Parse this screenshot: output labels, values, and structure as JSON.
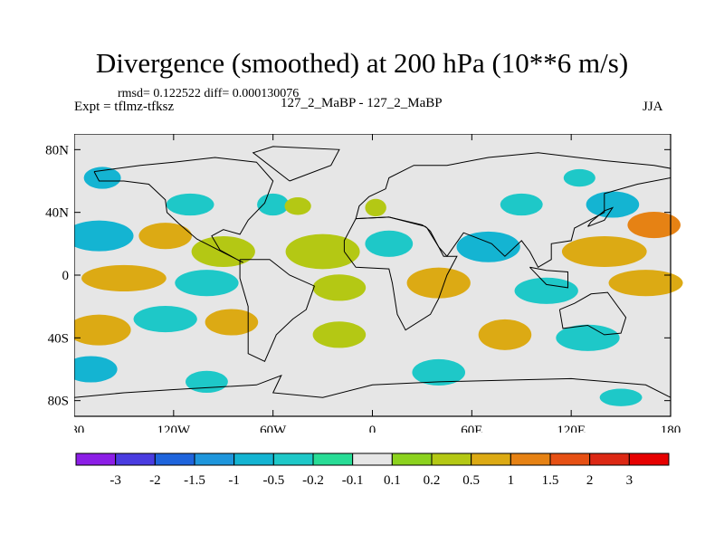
{
  "header": {
    "title": "Divergence (smoothed) at 200 hPa (10**6 m/s)",
    "stats": "rmsd= 0.122522 diff= 0.000130076",
    "expt": "Expt = tflmz-tfksz",
    "subtitle": "127_2_MaBP - 127_2_MaBP",
    "season": "JJA"
  },
  "chart_data": {
    "type": "heatmap",
    "title": "Divergence (smoothed) at 200 hPa (10**6 m/s)",
    "xlabel": "",
    "ylabel": "",
    "xlim": [
      -180,
      180
    ],
    "ylim": [
      -90,
      90
    ],
    "x_ticks": [
      {
        "value": -180,
        "label": "180"
      },
      {
        "value": -120,
        "label": "120W"
      },
      {
        "value": -60,
        "label": "60W"
      },
      {
        "value": 0,
        "label": "0"
      },
      {
        "value": 60,
        "label": "60E"
      },
      {
        "value": 120,
        "label": "120E"
      },
      {
        "value": 180,
        "label": "180"
      }
    ],
    "y_ticks": [
      {
        "value": 80,
        "label": "80N"
      },
      {
        "value": 40,
        "label": "40N"
      },
      {
        "value": 0,
        "label": "0"
      },
      {
        "value": -40,
        "label": "40S"
      },
      {
        "value": -80,
        "label": "80S"
      }
    ],
    "colorbar": {
      "levels": [
        "-3",
        "-2",
        "-1.5",
        "-1",
        "-0.5",
        "-0.2",
        "-0.1",
        "0.1",
        "0.2",
        "0.5",
        "1",
        "1.5",
        "2",
        "3"
      ],
      "colors": [
        "#8c1ee6",
        "#4a3ce0",
        "#1e64dc",
        "#1e96dc",
        "#14b4d2",
        "#1ec8c8",
        "#28dc96",
        "#e6e6e6",
        "#8cd21e",
        "#b4c814",
        "#dcaa14",
        "#e68214",
        "#e65014",
        "#dc2814",
        "#e60000"
      ]
    },
    "field_regions": [
      {
        "lon": -163,
        "lat": 62,
        "rlon": 7,
        "rlat": 5,
        "level": "-0.5"
      },
      {
        "lon": -110,
        "lat": 45,
        "rlon": 9,
        "rlat": 5,
        "level": "-0.2"
      },
      {
        "lon": -60,
        "lat": 45,
        "rlon": 6,
        "rlat": 5,
        "level": "-0.2"
      },
      {
        "lon": -45,
        "lat": 44,
        "rlon": 5,
        "rlat": 4,
        "level": "0.2"
      },
      {
        "lon": 2,
        "lat": 43,
        "rlon": 4,
        "rlat": 4,
        "level": "0.2"
      },
      {
        "lon": 90,
        "lat": 45,
        "rlon": 8,
        "rlat": 5,
        "level": "-0.2"
      },
      {
        "lon": 125,
        "lat": 62,
        "rlon": 6,
        "rlat": 4,
        "level": "-0.2"
      },
      {
        "lon": 145,
        "lat": 45,
        "rlon": 10,
        "rlat": 6,
        "level": "-0.5"
      },
      {
        "lon": 170,
        "lat": 32,
        "rlon": 10,
        "rlat": 6,
        "level": "1"
      },
      {
        "lon": -165,
        "lat": 25,
        "rlon": 13,
        "rlat": 7,
        "level": "-0.5"
      },
      {
        "lon": -125,
        "lat": 25,
        "rlon": 10,
        "rlat": 6,
        "level": "0.5"
      },
      {
        "lon": -90,
        "lat": 15,
        "rlon": 12,
        "rlat": 7,
        "level": "0.2"
      },
      {
        "lon": -30,
        "lat": 15,
        "rlon": 14,
        "rlat": 8,
        "level": "0.2"
      },
      {
        "lon": 10,
        "lat": 20,
        "rlon": 9,
        "rlat": 6,
        "level": "-0.2"
      },
      {
        "lon": 70,
        "lat": 18,
        "rlon": 12,
        "rlat": 7,
        "level": "-0.5"
      },
      {
        "lon": 140,
        "lat": 15,
        "rlon": 16,
        "rlat": 7,
        "level": "0.5"
      },
      {
        "lon": -150,
        "lat": -2,
        "rlon": 16,
        "rlat": 6,
        "level": "0.5"
      },
      {
        "lon": -100,
        "lat": -5,
        "rlon": 12,
        "rlat": 6,
        "level": "-0.2"
      },
      {
        "lon": -20,
        "lat": -8,
        "rlon": 10,
        "rlat": 6,
        "level": "0.2"
      },
      {
        "lon": 40,
        "lat": -5,
        "rlon": 12,
        "rlat": 7,
        "level": "0.5"
      },
      {
        "lon": 105,
        "lat": -10,
        "rlon": 12,
        "rlat": 6,
        "level": "-0.2"
      },
      {
        "lon": 165,
        "lat": -5,
        "rlon": 14,
        "rlat": 6,
        "level": "0.5"
      },
      {
        "lon": -165,
        "lat": -35,
        "rlon": 12,
        "rlat": 7,
        "level": "0.5"
      },
      {
        "lon": -125,
        "lat": -28,
        "rlon": 12,
        "rlat": 6,
        "level": "-0.2"
      },
      {
        "lon": -85,
        "lat": -30,
        "rlon": 10,
        "rlat": 6,
        "level": "0.5"
      },
      {
        "lon": -20,
        "lat": -38,
        "rlon": 10,
        "rlat": 6,
        "level": "0.2"
      },
      {
        "lon": 80,
        "lat": -38,
        "rlon": 10,
        "rlat": 7,
        "level": "0.5"
      },
      {
        "lon": 130,
        "lat": -40,
        "rlon": 12,
        "rlat": 6,
        "level": "-0.2"
      },
      {
        "lon": -170,
        "lat": -60,
        "rlon": 10,
        "rlat": 6,
        "level": "-0.5"
      },
      {
        "lon": -100,
        "lat": -68,
        "rlon": 8,
        "rlat": 5,
        "level": "-0.2"
      },
      {
        "lon": 40,
        "lat": -62,
        "rlon": 10,
        "rlat": 6,
        "level": "-0.2"
      },
      {
        "lon": 150,
        "lat": -78,
        "rlon": 8,
        "rlat": 4,
        "level": "-0.2"
      }
    ],
    "coastlines": [
      [
        [
          -168,
          66
        ],
        [
          -140,
          70
        ],
        [
          -120,
          72
        ],
        [
          -95,
          75
        ],
        [
          -70,
          72
        ],
        [
          -60,
          60
        ],
        [
          -65,
          46
        ],
        [
          -75,
          35
        ],
        [
          -80,
          26
        ],
        [
          -90,
          29
        ],
        [
          -97,
          25
        ],
        [
          -92,
          16
        ],
        [
          -80,
          9
        ],
        [
          -78,
          8
        ],
        [
          -106,
          23
        ],
        [
          -117,
          33
        ],
        [
          -124,
          40
        ],
        [
          -125,
          48
        ],
        [
          -135,
          58
        ],
        [
          -150,
          60
        ],
        [
          -165,
          60
        ],
        [
          -168,
          66
        ]
      ],
      [
        [
          -80,
          10
        ],
        [
          -62,
          10
        ],
        [
          -50,
          0
        ],
        [
          -35,
          -7
        ],
        [
          -40,
          -22
        ],
        [
          -48,
          -28
        ],
        [
          -58,
          -38
        ],
        [
          -65,
          -55
        ],
        [
          -75,
          -50
        ],
        [
          -75,
          -20
        ],
        [
          -80,
          -2
        ],
        [
          -80,
          10
        ]
      ],
      [
        [
          -10,
          36
        ],
        [
          -8,
          44
        ],
        [
          -2,
          50
        ],
        [
          8,
          55
        ],
        [
          10,
          62
        ],
        [
          25,
          70
        ],
        [
          45,
          70
        ],
        [
          70,
          75
        ],
        [
          100,
          78
        ],
        [
          140,
          73
        ],
        [
          170,
          70
        ],
        [
          180,
          68
        ],
        [
          180,
          62
        ],
        [
          160,
          58
        ],
        [
          140,
          52
        ],
        [
          140,
          40
        ],
        [
          122,
          30
        ],
        [
          120,
          22
        ],
        [
          108,
          20
        ],
        [
          108,
          10
        ],
        [
          100,
          5
        ],
        [
          95,
          15
        ],
        [
          90,
          22
        ],
        [
          80,
          12
        ],
        [
          72,
          20
        ],
        [
          60,
          25
        ],
        [
          55,
          27
        ],
        [
          45,
          12
        ],
        [
          40,
          18
        ],
        [
          33,
          30
        ],
        [
          30,
          32
        ],
        [
          10,
          37
        ],
        [
          -10,
          36
        ]
      ],
      [
        [
          -17,
          15
        ],
        [
          -17,
          22
        ],
        [
          -10,
          36
        ],
        [
          10,
          37
        ],
        [
          32,
          31
        ],
        [
          35,
          28
        ],
        [
          43,
          12
        ],
        [
          51,
          12
        ],
        [
          45,
          0
        ],
        [
          40,
          -15
        ],
        [
          35,
          -25
        ],
        [
          20,
          -35
        ],
        [
          15,
          -25
        ],
        [
          12,
          -5
        ],
        [
          10,
          4
        ],
        [
          -10,
          5
        ],
        [
          -17,
          15
        ]
      ],
      [
        [
          113,
          -22
        ],
        [
          122,
          -18
        ],
        [
          132,
          -12
        ],
        [
          142,
          -11
        ],
        [
          153,
          -27
        ],
        [
          150,
          -37
        ],
        [
          140,
          -38
        ],
        [
          130,
          -32
        ],
        [
          115,
          -34
        ],
        [
          113,
          -22
        ]
      ],
      [
        [
          -180,
          -78
        ],
        [
          -150,
          -75
        ],
        [
          -120,
          -73
        ],
        [
          -70,
          -70
        ],
        [
          -55,
          -64
        ],
        [
          -60,
          -75
        ],
        [
          -30,
          -78
        ],
        [
          0,
          -70
        ],
        [
          40,
          -68
        ],
        [
          80,
          -67
        ],
        [
          120,
          -66
        ],
        [
          165,
          -70
        ],
        [
          180,
          -78
        ]
      ],
      [
        [
          -50,
          60
        ],
        [
          -25,
          70
        ],
        [
          -20,
          80
        ],
        [
          -60,
          82
        ],
        [
          -72,
          78
        ],
        [
          -50,
          60
        ]
      ],
      [
        [
          95,
          5
        ],
        [
          105,
          -6
        ],
        [
          118,
          -8
        ],
        [
          118,
          2
        ],
        [
          105,
          3
        ],
        [
          95,
          5
        ]
      ],
      [
        [
          130,
          31
        ],
        [
          140,
          35
        ],
        [
          145,
          43
        ],
        [
          140,
          41
        ],
        [
          132,
          34
        ],
        [
          130,
          31
        ]
      ]
    ]
  }
}
